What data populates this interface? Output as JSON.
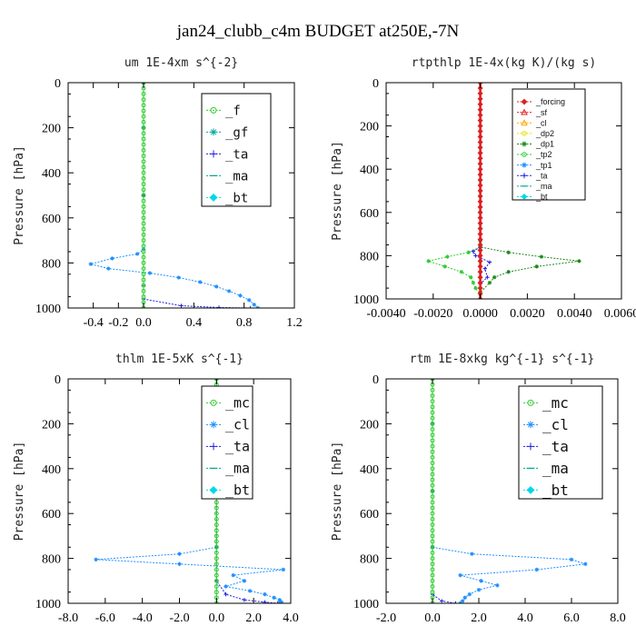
{
  "suptitle": "jan24_clubb_c4m  BUDGET at250E,-7N",
  "colors": {
    "red": "#dd1f1f",
    "green": "#2ecc2e",
    "blue": "#2020dd",
    "cyan": "#00d8e8",
    "teal": "#00a898",
    "azure": "#1e90ff",
    "orange": "#ffa500",
    "yellow": "#e8e000",
    "darkgreen": "#1a8a1a"
  },
  "chart_data": [
    {
      "type": "line",
      "title": "um   1E-4xm s^{-2}",
      "ylabel": "Pressure [hPa]",
      "xlim": [
        -0.6,
        1.2
      ],
      "ylim": [
        1000,
        0
      ],
      "xticks": [
        "-0.4",
        "-0.2",
        "0.0",
        "0.4",
        "0.8",
        "1.2"
      ],
      "xtick_values": [
        -0.4,
        -0.2,
        0.0,
        0.4,
        0.8,
        1.2
      ],
      "yticks": [
        "0",
        "200",
        "400",
        "600",
        "800",
        "1000"
      ],
      "ytick_values": [
        0,
        200,
        400,
        600,
        800,
        1000
      ],
      "legend": [
        "_f",
        "_gf",
        "_ta",
        "_ma",
        "_bt"
      ],
      "legend_colors": [
        "green",
        "teal",
        "blue",
        "teal",
        "cyan"
      ],
      "legend_markers": [
        "circle",
        "star",
        "plus",
        "dash",
        "diamond"
      ],
      "legend_position": "top-right",
      "series": [
        {
          "name": "_bt",
          "color": "azure",
          "x": [
            0.0,
            0.0,
            0.0,
            0.0,
            -0.05,
            -0.25,
            -0.42,
            -0.28,
            0.05,
            0.28,
            0.45,
            0.58,
            0.68,
            0.77,
            0.84,
            0.88,
            0.91
          ],
          "y": [
            0,
            200,
            500,
            740,
            760,
            780,
            805,
            825,
            845,
            865,
            885,
            905,
            925,
            945,
            965,
            985,
            1000
          ]
        },
        {
          "name": "_ta",
          "color": "blue",
          "x": [
            0.0,
            0.0,
            0.0,
            0.0,
            0.3,
            0.6,
            0.85
          ],
          "y": [
            0,
            500,
            900,
            960,
            990,
            998,
            1000
          ]
        },
        {
          "name": "_f",
          "color": "green",
          "x": [
            0.0,
            0.0,
            0.0,
            0.0,
            0.0,
            0.0,
            0.0,
            0.0,
            0.0,
            0.0,
            0.0
          ],
          "y": [
            0,
            100,
            200,
            300,
            400,
            500,
            600,
            700,
            800,
            900,
            1000
          ]
        }
      ]
    },
    {
      "type": "line",
      "title": "rtpthlp   1E-4x(kg K)/(kg s)",
      "ylabel": "Pressure [hPa]",
      "xlim": [
        -0.004,
        0.006
      ],
      "ylim": [
        1000,
        0
      ],
      "xticks": [
        "-0.0040",
        "-0.0020",
        "0.0000",
        "0.0020",
        "0.0040",
        "0.0060"
      ],
      "xtick_values": [
        -0.004,
        -0.002,
        0.0,
        0.002,
        0.004,
        0.006
      ],
      "yticks": [
        "0",
        "200",
        "400",
        "600",
        "800",
        "1000"
      ],
      "ytick_values": [
        0,
        200,
        400,
        600,
        800,
        1000
      ],
      "legend": [
        "_forcing",
        "_sf",
        "_cl",
        "_dp2",
        "_dp1",
        "_tp2",
        "_tp1",
        "_ta",
        "_ma",
        "_bt"
      ],
      "legend_colors": [
        "red",
        "red",
        "orange",
        "yellow",
        "darkgreen",
        "green",
        "azure",
        "blue",
        "teal",
        "cyan"
      ],
      "legend_markers": [
        "diamond",
        "triangle",
        "triangle",
        "circle",
        "star",
        "circle",
        "star",
        "plus",
        "dash",
        "diamond"
      ],
      "legend_position": "top-right",
      "series": [
        {
          "name": "_tp2",
          "color": "green",
          "x": [
            0.0,
            0.0,
            0.0,
            0.0,
            -0.0005,
            -0.0014,
            -0.0022,
            -0.0015,
            -0.0008,
            -0.0004,
            -0.0003,
            -0.0002,
            0.0,
            0.0
          ],
          "y": [
            0,
            500,
            730,
            760,
            785,
            805,
            825,
            850,
            875,
            900,
            925,
            950,
            980,
            1000
          ]
        },
        {
          "name": "_dp1",
          "color": "darkgreen",
          "x": [
            0.0,
            0.0,
            0.0,
            0.0,
            0.0012,
            0.0026,
            0.0042,
            0.0024,
            0.0012,
            0.0006,
            0.0004,
            0.0,
            0.0
          ],
          "y": [
            0,
            500,
            730,
            760,
            785,
            805,
            825,
            850,
            875,
            900,
            925,
            970,
            1000
          ]
        },
        {
          "name": "_ta",
          "color": "blue",
          "x": [
            0.0,
            -0.0003,
            -0.0002,
            0.0004,
            0.0002,
            0.0003,
            0.0,
            0.0
          ],
          "y": [
            760,
            780,
            800,
            830,
            860,
            900,
            930,
            1000
          ]
        },
        {
          "name": "_forcing",
          "color": "red",
          "x": [
            0.0,
            0.0,
            0.0,
            0.0,
            0.0,
            0.0,
            0.0,
            0.0,
            0.0,
            0.0,
            0.0
          ],
          "y": [
            0,
            100,
            200,
            300,
            400,
            500,
            600,
            700,
            800,
            900,
            1000
          ]
        }
      ]
    },
    {
      "type": "line",
      "title": "thlm   1E-5xK s^{-1}",
      "ylabel": "Pressure [hPa]",
      "xlim": [
        -8.0,
        4.0
      ],
      "ylim": [
        1000,
        0
      ],
      "xticks": [
        "-8.0",
        "-6.0",
        "-4.0",
        "-2.0",
        "0.0",
        "2.0",
        "4.0"
      ],
      "xtick_values": [
        -8.0,
        -6.0,
        -4.0,
        -2.0,
        0.0,
        2.0,
        4.0
      ],
      "yticks": [
        "0",
        "200",
        "400",
        "600",
        "800",
        "1000"
      ],
      "ytick_values": [
        0,
        200,
        400,
        600,
        800,
        1000
      ],
      "legend": [
        "_mc",
        "_cl",
        "_ta",
        "_ma",
        "_bt"
      ],
      "legend_colors": [
        "green",
        "azure",
        "blue",
        "teal",
        "cyan"
      ],
      "legend_markers": [
        "circle",
        "star",
        "plus",
        "dash",
        "diamond"
      ],
      "legend_position": "top-right",
      "series": [
        {
          "name": "_cl",
          "color": "azure",
          "x": [
            0.0,
            0.0,
            0.0,
            0.0,
            -2.0,
            -6.5,
            -2.0,
            3.6,
            0.9,
            1.5,
            0.5,
            1.8,
            2.6,
            3.1,
            3.4,
            3.5,
            3.4
          ],
          "y": [
            0,
            200,
            500,
            750,
            780,
            805,
            825,
            850,
            875,
            900,
            925,
            945,
            960,
            975,
            985,
            995,
            1000
          ]
        },
        {
          "name": "_ta",
          "color": "blue",
          "x": [
            0.0,
            0.0,
            0.5,
            1.5,
            2.6,
            3.3
          ],
          "y": [
            0,
            900,
            960,
            985,
            995,
            1000
          ]
        },
        {
          "name": "_mc",
          "color": "green",
          "x": [
            0.0,
            0.0,
            0.0,
            0.0,
            0.0,
            0.0,
            0.0,
            0.0,
            0.0,
            0.0,
            0.0
          ],
          "y": [
            0,
            100,
            200,
            300,
            400,
            500,
            600,
            700,
            800,
            900,
            1000
          ]
        }
      ]
    },
    {
      "type": "line",
      "title": "rtm   1E-8xkg kg^{-1} s^{-1}",
      "ylabel": "Pressure [hPa]",
      "xlim": [
        -2.0,
        8.0
      ],
      "ylim": [
        1000,
        0
      ],
      "xticks": [
        "-2.0",
        "0.0",
        "2.0",
        "4.0",
        "6.0",
        "8.0"
      ],
      "xtick_values": [
        -2.0,
        0.0,
        2.0,
        4.0,
        6.0,
        8.0
      ],
      "yticks": [
        "0",
        "200",
        "400",
        "600",
        "800",
        "1000"
      ],
      "ytick_values": [
        0,
        200,
        400,
        600,
        800,
        1000
      ],
      "legend": [
        "_mc",
        "_cl",
        "_ta",
        "_ma",
        "_bt"
      ],
      "legend_colors": [
        "green",
        "azure",
        "blue",
        "teal",
        "cyan"
      ],
      "legend_markers": [
        "circle",
        "star",
        "plus",
        "dash",
        "diamond"
      ],
      "legend_position": "top-right",
      "series": [
        {
          "name": "_cl",
          "color": "azure",
          "x": [
            0.0,
            0.0,
            0.0,
            0.0,
            1.7,
            6.0,
            6.6,
            4.5,
            1.2,
            2.1,
            2.8,
            2.0,
            1.6,
            1.4,
            1.3,
            1.2
          ],
          "y": [
            0,
            200,
            500,
            750,
            780,
            805,
            825,
            850,
            875,
            900,
            920,
            940,
            960,
            975,
            990,
            1000
          ]
        },
        {
          "name": "_ta",
          "color": "blue",
          "x": [
            0.0,
            0.0,
            0.4,
            1.0
          ],
          "y": [
            0,
            960,
            990,
            1000
          ]
        },
        {
          "name": "_mc",
          "color": "green",
          "x": [
            0.0,
            0.0,
            0.0,
            0.0,
            0.0,
            0.0,
            0.0,
            0.0,
            0.0,
            0.0,
            0.0
          ],
          "y": [
            0,
            100,
            200,
            300,
            400,
            500,
            600,
            700,
            800,
            900,
            1000
          ]
        }
      ]
    }
  ]
}
